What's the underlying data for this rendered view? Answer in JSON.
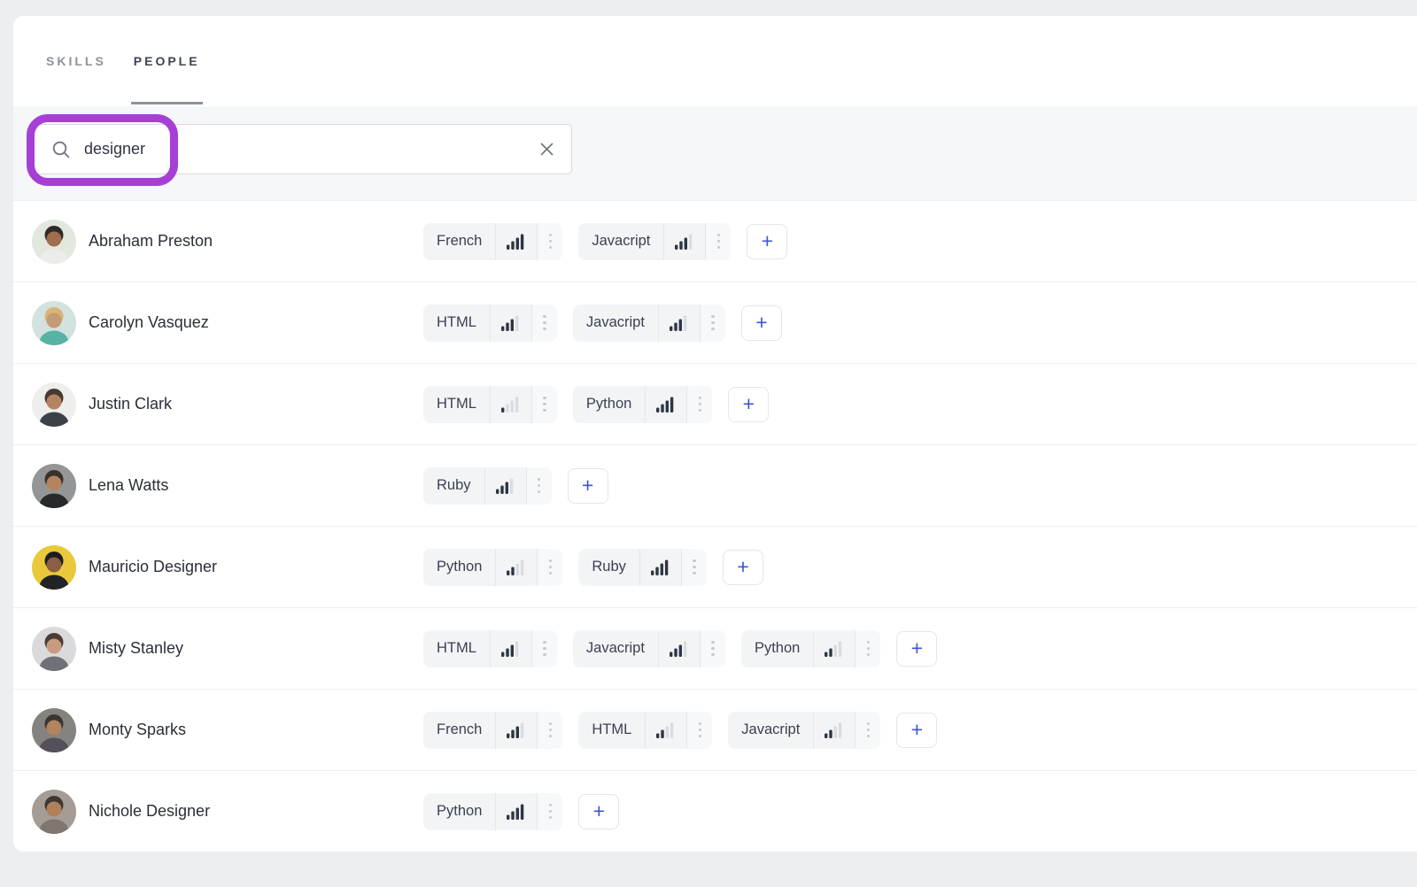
{
  "tabs": [
    {
      "label": "SKILLS",
      "active": false
    },
    {
      "label": "PEOPLE",
      "active": true
    }
  ],
  "search": {
    "value": "designer",
    "icon": "magnifier-icon",
    "clear_icon": "x-icon"
  },
  "annotation_color": "#a63fd6",
  "labels": {
    "plus": "+"
  },
  "colors": {
    "bar_filled": "#2e3543",
    "bar_empty": "#d9dce1",
    "plus_blue": "#3d56d4"
  },
  "skill_levels_max": 4,
  "people": [
    {
      "name": "Abraham Preston",
      "avatar": {
        "bg": "#e3e8de",
        "hair": "#2f2b28",
        "skin": "#9f6e4f",
        "shirt": "#ececea"
      },
      "skills": [
        {
          "name": "French",
          "level": 4
        },
        {
          "name": "Javacript",
          "level": 3
        }
      ]
    },
    {
      "name": "Carolyn Vasquez",
      "avatar": {
        "bg": "#d3e2df",
        "hair": "#d8b476",
        "skin": "#c69a74",
        "shirt": "#57b3a4"
      },
      "skills": [
        {
          "name": "HTML",
          "level": 3
        },
        {
          "name": "Javacript",
          "level": 3
        }
      ]
    },
    {
      "name": "Justin Clark",
      "avatar": {
        "bg": "#eeeeec",
        "hair": "#463a32",
        "skin": "#b3845f",
        "shirt": "#3c4148"
      },
      "skills": [
        {
          "name": "HTML",
          "level": 1
        },
        {
          "name": "Python",
          "level": 4
        }
      ]
    },
    {
      "name": "Lena Watts",
      "avatar": {
        "bg": "#939596",
        "hair": "#38312c",
        "skin": "#b3845f",
        "shirt": "#27292b"
      },
      "skills": [
        {
          "name": "Ruby",
          "level": 3
        }
      ]
    },
    {
      "name": "Mauricio Designer",
      "avatar": {
        "bg": "#e9c93b",
        "hair": "#1d1d1f",
        "skin": "#8a5f43",
        "shirt": "#222326"
      },
      "skills": [
        {
          "name": "Python",
          "level": 2
        },
        {
          "name": "Ruby",
          "level": 4
        }
      ]
    },
    {
      "name": "Misty Stanley",
      "avatar": {
        "bg": "#dadadc",
        "hair": "#4b3b33",
        "skin": "#c79c7e",
        "shirt": "#6e7276"
      },
      "skills": [
        {
          "name": "HTML",
          "level": 3
        },
        {
          "name": "Javacript",
          "level": 3
        },
        {
          "name": "Python",
          "level": 2
        }
      ]
    },
    {
      "name": "Monty Sparks",
      "avatar": {
        "bg": "#85837f",
        "hair": "#3d352f",
        "skin": "#b3845f",
        "shirt": "#55505a"
      },
      "skills": [
        {
          "name": "French",
          "level": 3
        },
        {
          "name": "HTML",
          "level": 2
        },
        {
          "name": "Javacript",
          "level": 2
        }
      ]
    },
    {
      "name": "Nichole Designer",
      "avatar": {
        "bg": "#a69c96",
        "hair": "#3f3732",
        "skin": "#b0805a",
        "shirt": "#7e766f"
      },
      "skills": [
        {
          "name": "Python",
          "level": 4
        }
      ]
    }
  ]
}
